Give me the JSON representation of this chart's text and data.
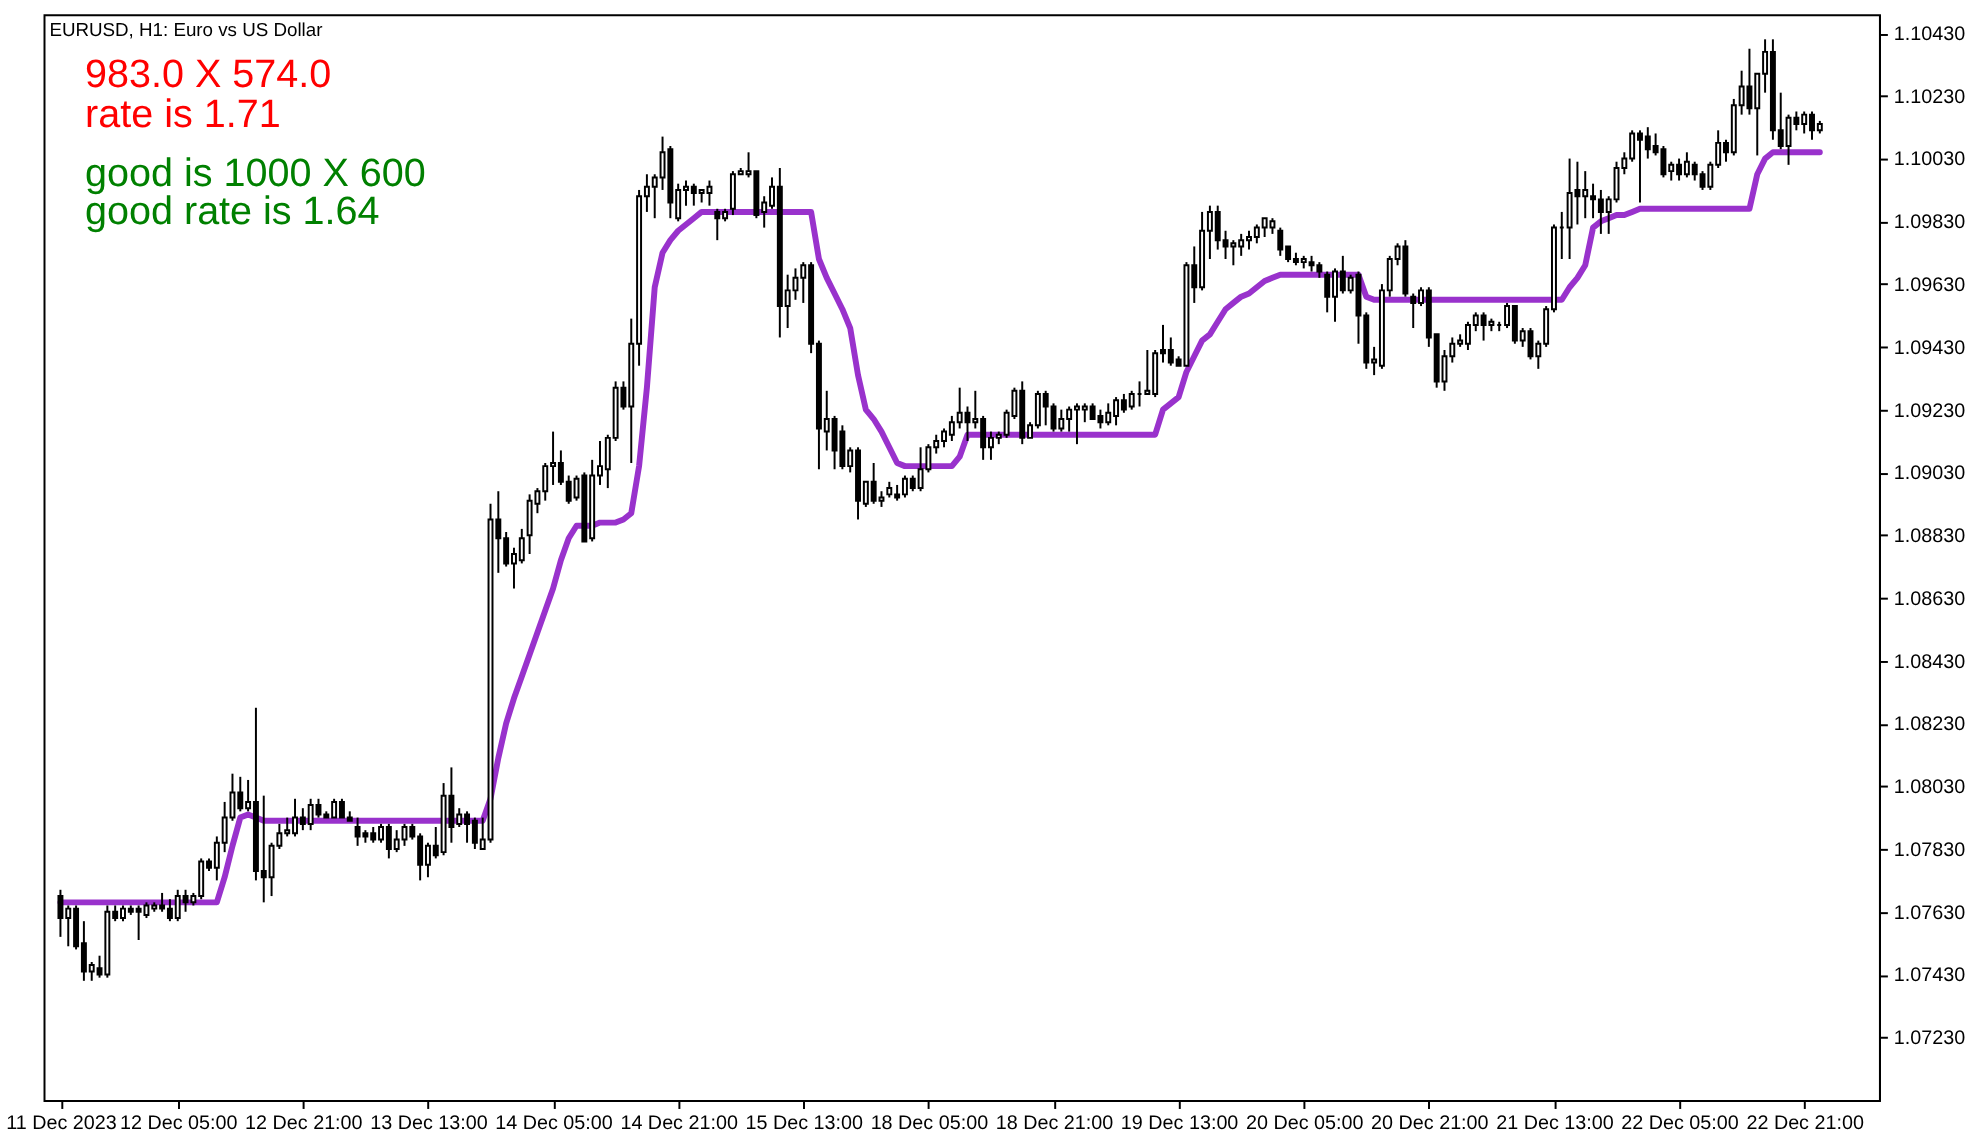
{
  "chart_data": {
    "type": "candlestick",
    "title": "EURUSD, H1: Euro vs US Dollar",
    "annotations": [
      "983.0 X 574.0",
      "rate is 1.71",
      "good is 1000 X 600",
      "good rate is 1.64"
    ],
    "categories": [
      "11 Dec 2023",
      null,
      null,
      null,
      null,
      null,
      null,
      null,
      null,
      null,
      null,
      null,
      null,
      null,
      null,
      "12 Dec 05:00",
      null,
      null,
      null,
      null,
      null,
      null,
      null,
      null,
      null,
      null,
      null,
      null,
      null,
      null,
      null,
      "12 Dec 21:00",
      null,
      null,
      null,
      null,
      null,
      null,
      null,
      null,
      null,
      null,
      null,
      null,
      null,
      null,
      null,
      "13 Dec 13:00",
      null,
      null,
      null,
      null,
      null,
      null,
      null,
      null,
      null,
      null,
      null,
      null,
      null,
      null,
      null,
      "14 Dec 05:00",
      null,
      null,
      null,
      null,
      null,
      null,
      null,
      null,
      null,
      null,
      null,
      null,
      null,
      null,
      null,
      "14 Dec 21:00",
      null,
      null,
      null,
      null,
      null,
      null,
      null,
      null,
      null,
      null,
      null,
      null,
      null,
      null,
      null,
      "15 Dec 13:00",
      null,
      null,
      null,
      null,
      null,
      null,
      null,
      null,
      null,
      null,
      null,
      null,
      null,
      null,
      null,
      "18 Dec 05:00",
      null,
      null,
      null,
      null,
      null,
      null,
      null,
      null,
      null,
      null,
      null,
      null,
      null,
      null,
      null,
      "18 Dec 21:00",
      null,
      null,
      null,
      null,
      null,
      null,
      null,
      null,
      null,
      null,
      null,
      null,
      null,
      null,
      null,
      "19 Dec 13:00",
      null,
      null,
      null,
      null,
      null,
      null,
      null,
      null,
      null,
      null,
      null,
      null,
      null,
      null,
      null,
      "20 Dec 05:00",
      null,
      null,
      null,
      null,
      null,
      null,
      null,
      null,
      null,
      null,
      null,
      null,
      null,
      null,
      null,
      "20 Dec 21:00",
      null,
      null,
      null,
      null,
      null,
      null,
      null,
      null,
      null,
      null,
      null,
      null,
      null,
      null,
      null,
      "21 Dec 13:00",
      null,
      null,
      null,
      null,
      null,
      null,
      null,
      null,
      null,
      null,
      null,
      null,
      null,
      null,
      null,
      "22 Dec 05:00",
      null,
      null,
      null,
      null,
      null,
      null,
      null,
      null,
      null,
      null,
      null,
      null,
      null,
      null,
      null,
      "22 Dec 21:00",
      null,
      null
    ],
    "ohlc": [
      [
        1.0768,
        1.077,
        1.0755,
        1.0761
      ],
      [
        1.0761,
        1.0765,
        1.0752,
        1.0764
      ],
      [
        1.0764,
        1.0765,
        1.0751,
        1.0752
      ],
      [
        1.0753,
        1.076,
        1.0741,
        1.0744
      ],
      [
        1.0744,
        1.0747,
        1.0741,
        1.0746
      ],
      [
        1.0745,
        1.0749,
        1.0742,
        1.0743
      ],
      [
        1.0743,
        1.0765,
        1.0742,
        1.0763
      ],
      [
        1.0763,
        1.0765,
        1.076,
        1.0761
      ],
      [
        1.0761,
        1.0765,
        1.076,
        1.0764
      ],
      [
        1.0764,
        1.0765,
        1.0762,
        1.0763
      ],
      [
        1.0764,
        1.0765,
        1.0754,
        1.0763
      ],
      [
        1.0762,
        1.0766,
        1.0761,
        1.0765
      ],
      [
        1.0764,
        1.0766,
        1.0763,
        1.0765
      ],
      [
        1.0765,
        1.0769,
        1.0763,
        1.0764
      ],
      [
        1.0764,
        1.0767,
        1.076,
        1.0761
      ],
      [
        1.0761,
        1.077,
        1.076,
        1.0768
      ],
      [
        1.0768,
        1.077,
        1.0763,
        1.0766
      ],
      [
        1.0766,
        1.0769,
        1.0765,
        1.0768
      ],
      [
        1.0768,
        1.078,
        1.0767,
        1.0779
      ],
      [
        1.0779,
        1.078,
        1.0776,
        1.0777
      ],
      [
        1.0777,
        1.0787,
        1.0773,
        1.0785
      ],
      [
        1.0785,
        1.0798,
        1.0782,
        1.0793
      ],
      [
        1.0793,
        1.0807,
        1.0792,
        1.0801
      ],
      [
        1.0801,
        1.0806,
        1.0795,
        1.0796
      ],
      [
        1.0796,
        1.0805,
        1.0795,
        1.0798
      ],
      [
        1.0798,
        1.0828,
        1.0773,
        1.0776
      ],
      [
        1.0776,
        1.08,
        1.0766,
        1.0774
      ],
      [
        1.0774,
        1.0785,
        1.0768,
        1.0784
      ],
      [
        1.0784,
        1.0791,
        1.0783,
        1.0788
      ],
      [
        1.0788,
        1.0793,
        1.0787,
        1.0789
      ],
      [
        1.0788,
        1.0799,
        1.0787,
        1.0793
      ],
      [
        1.0793,
        1.0796,
        1.0789,
        1.0791
      ],
      [
        1.0791,
        1.0799,
        1.0789,
        1.0797
      ],
      [
        1.0797,
        1.0799,
        1.0793,
        1.0794
      ],
      [
        1.0794,
        1.0795,
        1.0793,
        1.0793
      ],
      [
        1.0793,
        1.0799,
        1.0793,
        1.0798
      ],
      [
        1.0798,
        1.0799,
        1.0793,
        1.0793
      ],
      [
        1.0793,
        1.0795,
        1.0792,
        1.0792
      ],
      [
        1.079,
        1.0793,
        1.0784,
        1.0787
      ],
      [
        1.0788,
        1.0789,
        1.0785,
        1.0787
      ],
      [
        1.0788,
        1.079,
        1.0785,
        1.0786
      ],
      [
        1.0786,
        1.0791,
        1.0785,
        1.079
      ],
      [
        1.079,
        1.0791,
        1.078,
        1.0783
      ],
      [
        1.0783,
        1.0789,
        1.0782,
        1.0786
      ],
      [
        1.0786,
        1.0791,
        1.0784,
        1.079
      ],
      [
        1.079,
        1.0791,
        1.0786,
        1.0787
      ],
      [
        1.0787,
        1.0788,
        1.0773,
        1.0778
      ],
      [
        1.0778,
        1.0785,
        1.0774,
        1.0784
      ],
      [
        1.0784,
        1.079,
        1.078,
        1.0781
      ],
      [
        1.0782,
        1.0804,
        1.0781,
        1.08
      ],
      [
        1.08,
        1.0809,
        1.0785,
        1.079
      ],
      [
        1.0791,
        1.0796,
        1.079,
        1.0794
      ],
      [
        1.0794,
        1.0795,
        1.0785,
        1.0791
      ],
      [
        1.0792,
        1.0793,
        1.0783,
        1.0785
      ],
      [
        1.0783,
        1.0793,
        1.0783,
        1.0786
      ],
      [
        1.0786,
        1.0893,
        1.0785,
        1.0888
      ],
      [
        1.0888,
        1.0897,
        1.0871,
        1.0882
      ],
      [
        1.0882,
        1.0884,
        1.0873,
        1.0874
      ],
      [
        1.0874,
        1.0879,
        1.0866,
        1.0877
      ],
      [
        1.0875,
        1.0885,
        1.0874,
        1.0882
      ],
      [
        1.0883,
        1.0896,
        1.0877,
        1.0894
      ],
      [
        1.0893,
        1.0898,
        1.089,
        1.0897
      ],
      [
        1.0897,
        1.0906,
        1.0894,
        1.0905
      ],
      [
        1.0905,
        1.0916,
        1.0899,
        1.0906
      ],
      [
        1.0906,
        1.091,
        1.0899,
        1.09
      ],
      [
        1.09,
        1.0902,
        1.0893,
        1.0894
      ],
      [
        1.0895,
        1.0902,
        1.0894,
        1.0901
      ],
      [
        1.0902,
        1.0903,
        1.0881,
        1.0881
      ],
      [
        1.0882,
        1.0907,
        1.0881,
        1.0902
      ],
      [
        1.0902,
        1.0913,
        1.0899,
        1.0905
      ],
      [
        1.0904,
        1.0915,
        1.0898,
        1.0914
      ],
      [
        1.0914,
        1.0932,
        1.0913,
        1.093
      ],
      [
        1.093,
        1.0932,
        1.0923,
        1.0924
      ],
      [
        1.0924,
        1.0952,
        1.0906,
        1.0944
      ],
      [
        1.0944,
        1.0993,
        1.0937,
        1.0991
      ],
      [
        1.0991,
        1.0998,
        1.0986,
        1.0994
      ],
      [
        1.0994,
        1.0998,
        1.0984,
        1.0997
      ],
      [
        1.0997,
        1.101,
        1.0993,
        1.1005
      ],
      [
        1.1006,
        1.1007,
        1.0984,
        1.0989
      ],
      [
        1.0984,
        1.0995,
        1.0983,
        1.0993
      ],
      [
        1.0993,
        1.0996,
        1.0988,
        1.0994
      ],
      [
        1.0994,
        1.0995,
        1.0988,
        1.0992
      ],
      [
        1.0992,
        1.0993,
        1.0989,
        1.0993
      ],
      [
        1.0992,
        1.0996,
        1.0988,
        1.0994
      ],
      [
        1.0986,
        1.0987,
        1.0977,
        1.0984
      ],
      [
        1.0984,
        1.0987,
        1.0983,
        1.0986
      ],
      [
        1.0987,
        1.0999,
        1.0985,
        1.0998
      ],
      [
        1.0998,
        1.1,
        1.0998,
        1.0999
      ],
      [
        1.0998,
        1.1005,
        1.0997,
        1.0999
      ],
      [
        1.0999,
        1.0999,
        1.0984,
        1.0985
      ],
      [
        1.0986,
        1.0991,
        1.0981,
        1.0989
      ],
      [
        1.0988,
        1.0997,
        1.0987,
        1.0994
      ],
      [
        1.0994,
        1.1,
        1.0946,
        1.0956
      ],
      [
        1.0956,
        1.0966,
        1.0949,
        1.0961
      ],
      [
        1.0961,
        1.0968,
        1.0958,
        1.0965
      ],
      [
        1.0965,
        1.097,
        1.0957,
        1.0969
      ],
      [
        1.0969,
        1.097,
        1.0941,
        1.0944
      ],
      [
        1.0944,
        1.0945,
        1.0904,
        1.0917
      ],
      [
        1.0916,
        1.0929,
        1.091,
        1.092
      ],
      [
        1.092,
        1.0921,
        1.0904,
        1.091
      ],
      [
        1.0916,
        1.0918,
        1.0904,
        1.0905
      ],
      [
        1.0905,
        1.0911,
        1.0903,
        1.091
      ],
      [
        1.091,
        1.0911,
        1.0888,
        1.0894
      ],
      [
        1.0893,
        1.09,
        1.0892,
        1.09
      ],
      [
        1.09,
        1.0906,
        1.0893,
        1.0894
      ],
      [
        1.0894,
        1.0897,
        1.0892,
        1.0895
      ],
      [
        1.0896,
        1.09,
        1.0895,
        1.0898
      ],
      [
        1.0896,
        1.0899,
        1.0894,
        1.0895
      ],
      [
        1.0896,
        1.0902,
        1.0895,
        1.0901
      ],
      [
        1.0901,
        1.0902,
        1.0897,
        1.0898
      ],
      [
        1.0898,
        1.0911,
        1.0897,
        1.0904
      ],
      [
        1.0904,
        1.0912,
        1.0903,
        1.0911
      ],
      [
        1.0911,
        1.0915,
        1.0909,
        1.0913
      ],
      [
        1.0913,
        1.0917,
        1.0911,
        1.0916
      ],
      [
        1.0915,
        1.0921,
        1.0913,
        1.0919
      ],
      [
        1.0919,
        1.093,
        1.0917,
        1.0922
      ],
      [
        1.0922,
        1.0924,
        1.0913,
        1.0919
      ],
      [
        1.0919,
        1.0929,
        1.0917,
        1.092
      ],
      [
        1.092,
        1.0921,
        1.0907,
        1.0911
      ],
      [
        1.0911,
        1.0916,
        1.0907,
        1.0914
      ],
      [
        1.0914,
        1.0916,
        1.0912,
        1.0915
      ],
      [
        1.0915,
        1.0923,
        1.0914,
        1.0922
      ],
      [
        1.0921,
        1.093,
        1.092,
        1.0929
      ],
      [
        1.0929,
        1.0932,
        1.0912,
        1.0914
      ],
      [
        1.0914,
        1.0919,
        1.0914,
        1.0918
      ],
      [
        1.0918,
        1.0929,
        1.0917,
        1.0928
      ],
      [
        1.0928,
        1.0929,
        1.0918,
        1.0924
      ],
      [
        1.0924,
        1.0925,
        1.0916,
        1.0917
      ],
      [
        1.0917,
        1.0923,
        1.0916,
        1.092
      ],
      [
        1.092,
        1.0924,
        1.0916,
        1.0923
      ],
      [
        1.0923,
        1.0925,
        1.0912,
        1.0924
      ],
      [
        1.0923,
        1.0925,
        1.0919,
        1.0924
      ],
      [
        1.0924,
        1.0925,
        1.092,
        1.092
      ],
      [
        1.0921,
        1.0923,
        1.0917,
        1.0919
      ],
      [
        1.0919,
        1.0925,
        1.0918,
        1.0922
      ],
      [
        1.0921,
        1.0927,
        1.0918,
        1.0926
      ],
      [
        1.0926,
        1.0928,
        1.0922,
        1.0923
      ],
      [
        1.0924,
        1.0929,
        1.0923,
        1.0928
      ],
      [
        1.0928,
        1.0932,
        1.0924,
        1.0928
      ],
      [
        1.0928,
        1.0942,
        1.0928,
        1.0929
      ],
      [
        1.0928,
        1.0942,
        1.0927,
        1.0941
      ],
      [
        1.0942,
        1.095,
        1.0938,
        1.0941
      ],
      [
        1.0942,
        1.0946,
        1.0937,
        1.0938
      ],
      [
        1.0939,
        1.094,
        1.0937,
        1.0937
      ],
      [
        1.0937,
        1.097,
        1.0937,
        1.0969
      ],
      [
        1.0969,
        1.0975,
        1.0957,
        1.0962
      ],
      [
        1.0962,
        1.0986,
        1.0961,
        1.098
      ],
      [
        1.098,
        1.0988,
        1.0971,
        1.0986
      ],
      [
        1.0986,
        1.0988,
        1.0974,
        1.0977
      ],
      [
        1.0977,
        1.098,
        1.0971,
        1.0975
      ],
      [
        1.0975,
        1.0977,
        1.0969,
        1.0976
      ],
      [
        1.0975,
        1.0979,
        1.0972,
        1.0977
      ],
      [
        1.0977,
        1.098,
        1.0974,
        1.0978
      ],
      [
        1.0978,
        1.0982,
        1.0976,
        1.0981
      ],
      [
        1.0981,
        1.0984,
        1.0978,
        1.0984
      ],
      [
        1.0981,
        1.0984,
        1.0979,
        1.0983
      ],
      [
        1.098,
        1.0981,
        1.0972,
        1.0974
      ],
      [
        1.0975,
        1.0975,
        1.097,
        1.0971
      ],
      [
        1.0971,
        1.0973,
        1.0969,
        1.097
      ],
      [
        1.097,
        1.0972,
        1.0968,
        1.0971
      ],
      [
        1.097,
        1.0972,
        1.0967,
        1.0969
      ],
      [
        1.0969,
        1.097,
        1.0965,
        1.0967
      ],
      [
        1.0966,
        1.0967,
        1.0954,
        1.0959
      ],
      [
        1.0959,
        1.0968,
        1.0951,
        1.0967
      ],
      [
        1.0967,
        1.0972,
        1.096,
        1.0961
      ],
      [
        1.0961,
        1.0966,
        1.096,
        1.0965
      ],
      [
        1.0966,
        1.0967,
        1.0944,
        1.0953
      ],
      [
        1.0953,
        1.0954,
        1.0936,
        1.0938
      ],
      [
        1.0938,
        1.0943,
        1.0934,
        1.0939
      ],
      [
        1.0937,
        1.0963,
        1.0936,
        1.0961
      ],
      [
        1.0961,
        1.0972,
        1.0959,
        1.0971
      ],
      [
        1.0971,
        1.0976,
        1.0969,
        1.0975
      ],
      [
        1.0975,
        1.0977,
        1.0959,
        1.096
      ],
      [
        1.0959,
        1.096,
        1.0949,
        1.0957
      ],
      [
        1.0957,
        1.0962,
        1.0956,
        1.0961
      ],
      [
        1.0961,
        1.0962,
        1.0943,
        1.0946
      ],
      [
        1.0947,
        1.0947,
        1.093,
        1.0932
      ],
      [
        1.0932,
        1.0942,
        1.0929,
        1.094
      ],
      [
        1.094,
        1.0946,
        1.0938,
        1.0944
      ],
      [
        1.0944,
        1.0947,
        1.0943,
        1.0945
      ],
      [
        1.0944,
        1.0951,
        1.0942,
        1.095
      ],
      [
        1.095,
        1.0954,
        1.0948,
        1.0953
      ],
      [
        1.0953,
        1.0954,
        1.0945,
        1.095
      ],
      [
        1.095,
        1.0952,
        1.0948,
        1.0951
      ],
      [
        1.095,
        1.0951,
        1.0948,
        1.095
      ],
      [
        1.095,
        1.0957,
        1.0949,
        1.0956
      ],
      [
        1.0956,
        1.0956,
        1.0944,
        1.0945
      ],
      [
        1.0945,
        1.0949,
        1.0943,
        1.0948
      ],
      [
        1.0948,
        1.0949,
        1.0939,
        1.094
      ],
      [
        1.094,
        1.0945,
        1.0936,
        1.0944
      ],
      [
        1.0944,
        1.0956,
        1.0943,
        1.0955
      ],
      [
        1.0955,
        1.0982,
        1.0954,
        1.0981
      ],
      [
        1.0981,
        1.0986,
        1.0971,
        1.0981
      ],
      [
        1.0981,
        1.1003,
        1.0971,
        1.0992
      ],
      [
        1.0993,
        1.1002,
        1.0982,
        1.0991
      ],
      [
        1.0991,
        1.0999,
        1.0984,
        1.0993
      ],
      [
        1.0991,
        1.0995,
        1.0984,
        1.099
      ],
      [
        1.099,
        1.0993,
        1.0979,
        1.0986
      ],
      [
        1.0986,
        1.0991,
        1.0979,
        1.099
      ],
      [
        1.099,
        1.1002,
        1.0989,
        1.1
      ],
      [
        1.1,
        1.1005,
        1.0998,
        1.1003
      ],
      [
        1.1003,
        1.1012,
        1.1002,
        1.1011
      ],
      [
        1.1011,
        1.1012,
        1.0989,
        1.1009
      ],
      [
        1.101,
        1.1013,
        1.1003,
        1.1006
      ],
      [
        1.1007,
        1.1011,
        1.1004,
        1.1005
      ],
      [
        1.1006,
        1.1007,
        1.0997,
        1.0998
      ],
      [
        1.0999,
        1.1002,
        1.0996,
        1.1001
      ],
      [
        1.1001,
        1.1003,
        1.0996,
        1.0998
      ],
      [
        1.0998,
        1.1005,
        1.0997,
        1.1002
      ],
      [
        1.1001,
        1.1002,
        1.0996,
        1.0998
      ],
      [
        1.0998,
        1.0999,
        1.0993,
        1.0994
      ],
      [
        1.0994,
        1.1002,
        1.0993,
        1.1001
      ],
      [
        1.1001,
        1.1012,
        1.1,
        1.1008
      ],
      [
        1.1008,
        1.1009,
        1.1002,
        1.1005
      ],
      [
        1.1005,
        1.1022,
        1.1004,
        1.102
      ],
      [
        1.102,
        1.1031,
        1.1017,
        1.1026
      ],
      [
        1.1026,
        1.1038,
        1.1017,
        1.1019
      ],
      [
        1.1019,
        1.103,
        1.1004,
        1.103
      ],
      [
        1.103,
        1.1041,
        1.1024,
        1.1037
      ],
      [
        1.1037,
        1.1041,
        1.1009,
        1.1012
      ],
      [
        1.1012,
        1.1024,
        1.1006,
        1.1007
      ],
      [
        1.1007,
        1.1017,
        1.1001,
        1.1016
      ],
      [
        1.1016,
        1.1018,
        1.1012,
        1.1014
      ],
      [
        1.1014,
        1.1018,
        1.1011,
        1.1017
      ],
      [
        1.1017,
        1.1018,
        1.1009,
        1.1012
      ],
      [
        1.1012,
        1.1015,
        1.1011,
        1.1014
      ]
    ],
    "series": [
      {
        "type": "line",
        "color": "#9932cc",
        "values": [
          1.0766,
          1.0766,
          1.0766,
          1.0766,
          1.0766,
          1.0766,
          1.0766,
          1.0766,
          1.0766,
          1.0766,
          1.0766,
          1.0766,
          1.0766,
          1.0766,
          1.0766,
          1.0766,
          1.0766,
          1.0766,
          1.0766,
          1.0766,
          1.0766,
          1.0774,
          1.0784,
          1.0793,
          1.0794,
          1.0793,
          1.0792,
          1.0792,
          1.0792,
          1.0792,
          1.0792,
          1.0792,
          1.0792,
          1.0792,
          1.0792,
          1.0792,
          1.0792,
          1.0792,
          1.0792,
          1.0792,
          1.0792,
          1.0792,
          1.0792,
          1.0792,
          1.0792,
          1.0792,
          1.0792,
          1.0792,
          1.0792,
          1.0792,
          1.0792,
          1.0792,
          1.0792,
          1.0792,
          1.0792,
          1.0799,
          1.0812,
          1.0823,
          1.0831,
          1.0838,
          1.0845,
          1.0852,
          1.0859,
          1.0866,
          1.0875,
          1.0882,
          1.0886,
          1.0886,
          1.0886,
          1.0887,
          1.0887,
          1.0887,
          1.0888,
          1.089,
          1.0905,
          1.093,
          1.0962,
          1.0973,
          1.0977,
          1.098,
          1.0982,
          1.0984,
          1.0986,
          1.0986,
          1.0986,
          1.0986,
          1.0986,
          1.0986,
          1.0986,
          1.0986,
          1.0986,
          1.0986,
          1.0986,
          1.0986,
          1.0986,
          1.0986,
          1.0986,
          1.0971,
          1.0965,
          1.096,
          1.0955,
          1.0949,
          1.0934,
          1.0923,
          1.092,
          1.0916,
          1.0911,
          1.0906,
          1.0905,
          1.0905,
          1.0905,
          1.0905,
          1.0905,
          1.0905,
          1.0905,
          1.0908,
          1.0915,
          1.0915,
          1.0915,
          1.0915,
          1.0915,
          1.0915,
          1.0915,
          1.0915,
          1.0915,
          1.0915,
          1.0915,
          1.0915,
          1.0915,
          1.0915,
          1.0915,
          1.0915,
          1.0915,
          1.0915,
          1.0915,
          1.0915,
          1.0915,
          1.0915,
          1.0915,
          1.0915,
          1.0915,
          1.0923,
          1.0925,
          1.0927,
          1.0935,
          1.094,
          1.0945,
          1.0947,
          1.0951,
          1.0955,
          1.0957,
          1.0959,
          1.096,
          1.0962,
          1.0964,
          1.0965,
          1.0966,
          1.0966,
          1.0966,
          1.0966,
          1.0966,
          1.0966,
          1.0966,
          1.0966,
          1.0966,
          1.0966,
          1.0966,
          1.0959,
          1.0958,
          1.0958,
          1.0958,
          1.0958,
          1.0958,
          1.0958,
          1.0958,
          1.0958,
          1.0958,
          1.0958,
          1.0958,
          1.0958,
          1.0958,
          1.0958,
          1.0958,
          1.0958,
          1.0958,
          1.0958,
          1.0958,
          1.0958,
          1.0958,
          1.0958,
          1.0958,
          1.0958,
          1.0958,
          1.0962,
          1.0965,
          1.0969,
          1.0981,
          1.0983,
          1.0984,
          1.0985,
          1.0985,
          1.0986,
          1.0987,
          1.0987,
          1.0987,
          1.0987,
          1.0987,
          1.0987,
          1.0987,
          1.0987,
          1.0987,
          1.0987,
          1.0987,
          1.0987,
          1.0987,
          1.0987,
          1.0987,
          1.0998,
          1.1003,
          1.1005,
          1.1005,
          1.1005,
          1.1005,
          1.1005,
          1.1005,
          1.1005
        ]
      }
    ],
    "ylim": [
      1.0703,
      1.1049
    ],
    "yticks": [
      {
        "value": 1.1043,
        "label": "1.10430"
      },
      {
        "value": 1.1023,
        "label": "1.10230"
      },
      {
        "value": 1.1003,
        "label": "1.10030"
      },
      {
        "value": 1.0983,
        "label": "1.09830"
      },
      {
        "value": 1.0963,
        "label": "1.09630"
      },
      {
        "value": 1.0943,
        "label": "1.09430"
      },
      {
        "value": 1.0923,
        "label": "1.09230"
      },
      {
        "value": 1.0903,
        "label": "1.09030"
      },
      {
        "value": 1.0883,
        "label": "1.08830"
      },
      {
        "value": 1.0863,
        "label": "1.08630"
      },
      {
        "value": 1.0843,
        "label": "1.08430"
      },
      {
        "value": 1.0823,
        "label": "1.08230"
      },
      {
        "value": 1.0803,
        "label": "1.08030"
      },
      {
        "value": 1.0783,
        "label": "1.07830"
      },
      {
        "value": 1.0763,
        "label": "1.07630"
      },
      {
        "value": 1.0743,
        "label": "1.07430"
      },
      {
        "value": 1.0723,
        "label": "1.07230"
      }
    ],
    "grid": false
  }
}
